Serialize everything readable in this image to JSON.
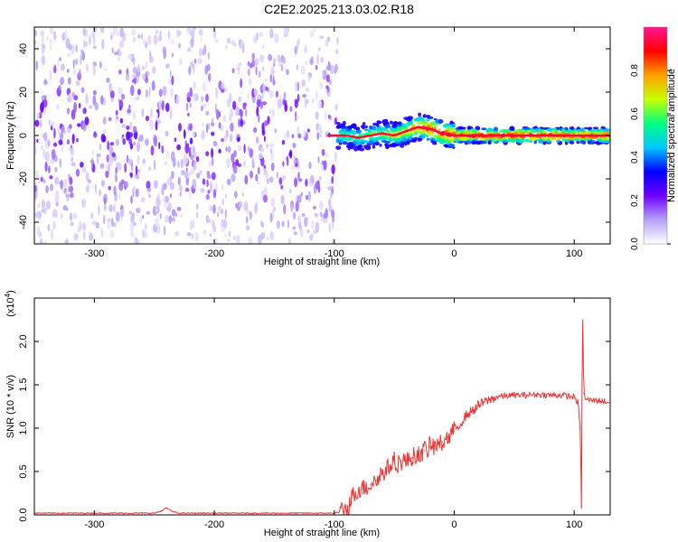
{
  "title": "C2E2.2025.213.03.02.R18",
  "chart_data": [
    {
      "type": "heatmap",
      "xlabel": "Height of straight line (km)",
      "ylabel": "Frequency (Hz)",
      "xlim": [
        -350,
        130
      ],
      "ylim": [
        -50,
        50
      ],
      "x_ticks": [
        -300,
        -200,
        -100,
        0,
        100
      ],
      "y_ticks": [
        -40,
        -20,
        0,
        20,
        40
      ],
      "grid": false,
      "colorbar": {
        "label": "Normalized spectral amplitude",
        "range": [
          0,
          1
        ],
        "ticks": [
          0.0,
          0.2,
          0.4,
          0.6,
          0.8
        ],
        "colors": [
          "#ffffff",
          "#b7a0f8",
          "#6f00ff",
          "#0000ff",
          "#00c8ff",
          "#00ff80",
          "#c8ff00",
          "#ffa000",
          "#ff0000",
          "#ff1493"
        ]
      },
      "regions": [
        {
          "name": "diffuse-noise",
          "x": [
            -350,
            -97
          ],
          "y": [
            -50,
            50
          ],
          "amplitude": [
            0.0,
            0.25
          ]
        },
        {
          "name": "narrow-band",
          "x": [
            -97,
            130
          ],
          "y": [
            -8,
            8
          ],
          "amplitude": [
            0.3,
            1.0
          ]
        }
      ],
      "ridge": {
        "x": [
          -105,
          -90,
          -80,
          -70,
          -60,
          -50,
          -40,
          -30,
          -20,
          -10,
          0,
          20,
          50,
          80,
          100,
          110,
          130
        ],
        "y": [
          0,
          0,
          -1,
          0,
          1,
          0,
          2,
          4,
          3,
          1,
          0,
          0,
          0,
          0,
          0,
          0,
          0
        ],
        "amplitude": [
          0.55,
          0.6,
          0.6,
          0.65,
          0.65,
          0.7,
          0.75,
          0.85,
          0.9,
          0.9,
          0.9,
          0.95,
          0.95,
          0.95,
          0.9,
          0.9,
          0.9
        ]
      }
    },
    {
      "type": "line",
      "xlabel": "Height of straight line (km)",
      "ylabel": "SNR (10 * v/v)",
      "y_scale_label": "(x10",
      "y_scale_exponent": "4",
      "xlim": [
        -350,
        130
      ],
      "ylim": [
        0,
        2.5
      ],
      "x_ticks": [
        -300,
        -200,
        -100,
        0,
        100
      ],
      "y_ticks": [
        0.0,
        0.5,
        1.0,
        1.5,
        2.0
      ],
      "grid": false,
      "color": "#ee3333",
      "series": [
        {
          "x": [
            -350,
            -300,
            -250,
            -245,
            -240,
            -235,
            -230,
            -200,
            -150,
            -100,
            -90,
            -85,
            -80,
            -75,
            -70,
            -65,
            -60,
            -55,
            -50,
            -45,
            -40,
            -35,
            -30,
            -25,
            -20,
            -15,
            -10,
            -5,
            0,
            5,
            10,
            15,
            20,
            25,
            30,
            35,
            40,
            50,
            60,
            70,
            80,
            90,
            95,
            100,
            103,
            105,
            106,
            107,
            108,
            110,
            115,
            120,
            130
          ],
          "y": [
            0.02,
            0.02,
            0.02,
            0.04,
            0.08,
            0.04,
            0.02,
            0.02,
            0.02,
            0.02,
            0.05,
            0.2,
            0.3,
            0.32,
            0.35,
            0.4,
            0.48,
            0.55,
            0.6,
            0.62,
            0.62,
            0.66,
            0.7,
            0.74,
            0.78,
            0.8,
            0.84,
            0.9,
            0.97,
            1.05,
            1.15,
            1.2,
            1.26,
            1.3,
            1.33,
            1.36,
            1.37,
            1.38,
            1.38,
            1.39,
            1.38,
            1.38,
            1.37,
            1.36,
            1.3,
            1.0,
            0.1,
            2.5,
            1.4,
            1.33,
            1.32,
            1.32,
            1.3
          ]
        }
      ]
    }
  ]
}
